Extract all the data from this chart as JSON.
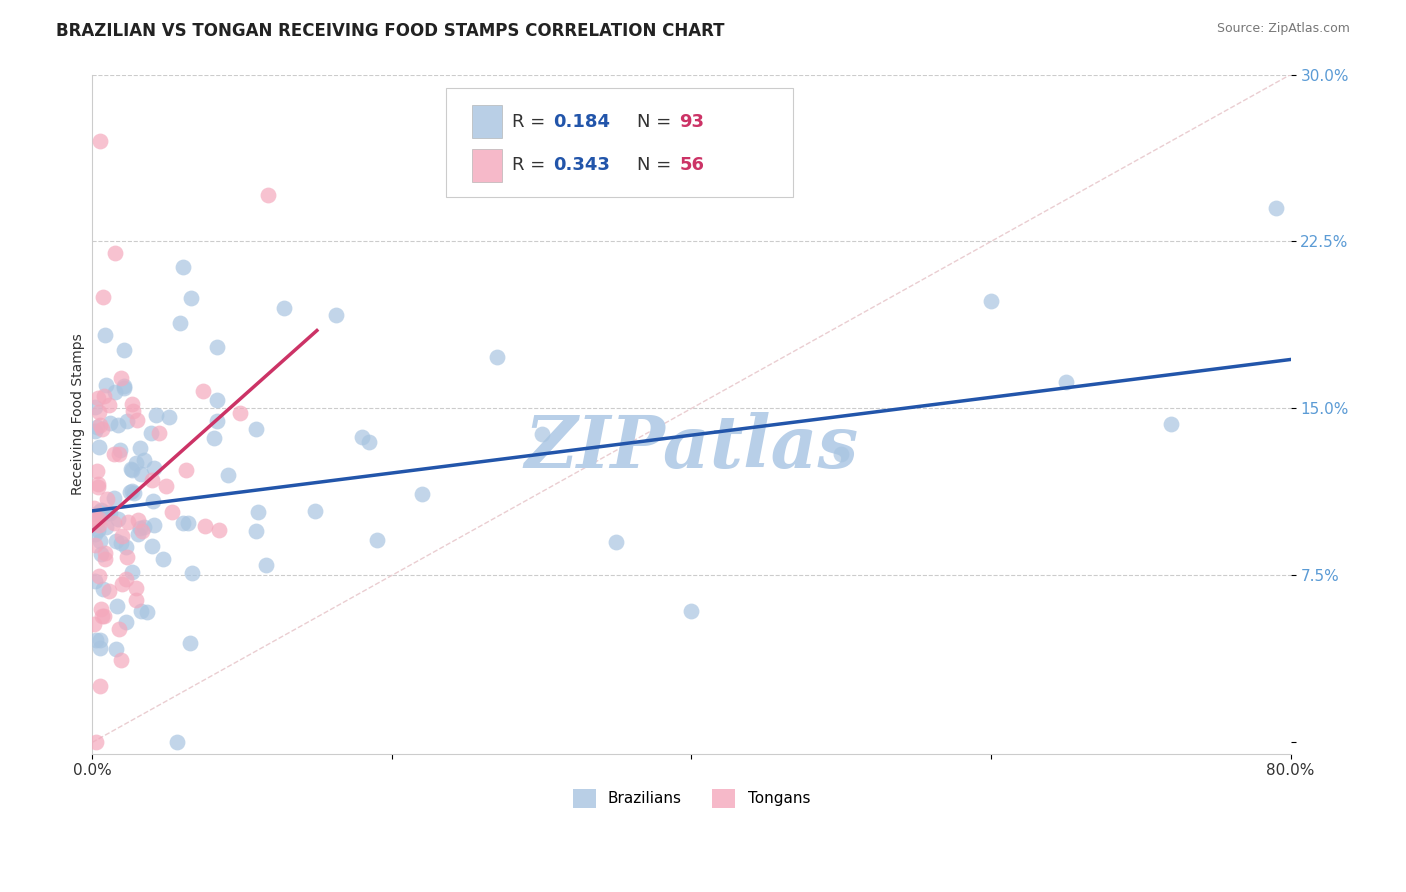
{
  "title": "BRAZILIAN VS TONGAN RECEIVING FOOD STAMPS CORRELATION CHART",
  "source": "Source: ZipAtlas.com",
  "ylabel": "Receiving Food Stamps",
  "xlim": [
    0.0,
    0.8
  ],
  "ylim": [
    -0.005,
    0.3
  ],
  "xticks": [
    0.0,
    0.2,
    0.4,
    0.6,
    0.8
  ],
  "xticklabels": [
    "0.0%",
    "",
    "",
    "",
    "80.0%"
  ],
  "yticks": [
    0.0,
    0.075,
    0.15,
    0.225,
    0.3
  ],
  "yticklabels": [
    "",
    "7.5%",
    "15.0%",
    "22.5%",
    "30.0%"
  ],
  "ytick_color": "#5b9bd5",
  "xtick_color": "#333333",
  "brazilian_color": "#a8c4e0",
  "tongan_color": "#f4a8bc",
  "brazilian_line_color": "#2255aa",
  "tongan_line_color": "#cc3366",
  "ref_line_color": "#e8c8cc",
  "grid_color": "#cccccc",
  "watermark_color": "#b8cfe8",
  "watermark_text": "ZIPatlas",
  "legend_text_color": "#2255aa",
  "legend_N_color": "#cc3366",
  "brazil_R": 0.184,
  "brazil_N": 93,
  "tongan_R": 0.343,
  "tongan_N": 56,
  "brazil_trend_x": [
    0.0,
    0.8
  ],
  "brazil_trend_y": [
    0.104,
    0.172
  ],
  "tongan_trend_x": [
    0.0,
    0.15
  ],
  "tongan_trend_y": [
    0.095,
    0.185
  ],
  "background_color": "#ffffff",
  "title_fontsize": 12,
  "tick_fontsize": 11,
  "legend_fontsize": 13,
  "watermark_fontsize": 52
}
